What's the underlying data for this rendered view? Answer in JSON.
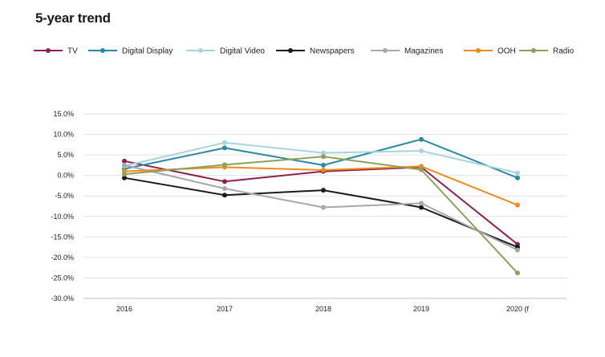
{
  "chart_data": {
    "type": "line",
    "title": "5-year trend",
    "categories": [
      "2016",
      "2017",
      "2018",
      "2019",
      "2020 (f"
    ],
    "xlabel": "",
    "ylabel": "",
    "ylim": [
      -30,
      15
    ],
    "yticks": [
      15,
      10,
      5,
      0,
      -5,
      -10,
      -15,
      -20,
      -25,
      -30
    ],
    "ytick_labels": [
      "15.0%",
      "10.0%",
      "5.0%",
      "0.0%",
      "-5.0%",
      "-10.0%",
      "-15.0%",
      "-20.0%",
      "-25.0%",
      "-30.0%"
    ],
    "grid": true,
    "legend_position": "top",
    "series": [
      {
        "name": "TV",
        "color": "#8b2252",
        "values": [
          3.5,
          -1.5,
          1.0,
          2.0,
          -16.8
        ]
      },
      {
        "name": "Digital Display",
        "color": "#2a8aa0",
        "values": [
          1.6,
          6.7,
          2.5,
          8.8,
          -0.6
        ]
      },
      {
        "name": "Digital Video",
        "color": "#a9d4dc",
        "values": [
          2.3,
          8.0,
          5.5,
          6.0,
          0.6
        ]
      },
      {
        "name": "Newspapers",
        "color": "#1a1a1a",
        "values": [
          -0.6,
          -4.8,
          -3.6,
          -7.8,
          -17.5
        ]
      },
      {
        "name": "Magazines",
        "color": "#a8a8a8",
        "values": [
          2.5,
          -3.2,
          -7.8,
          -6.8,
          -18.2
        ]
      },
      {
        "name": "OOH",
        "color": "#ef8a1e",
        "values": [
          1.0,
          2.0,
          1.3,
          2.2,
          -7.2
        ]
      },
      {
        "name": "Radio",
        "color": "#8fa05a",
        "values": [
          0.3,
          2.6,
          4.6,
          1.4,
          -23.8
        ]
      }
    ]
  }
}
